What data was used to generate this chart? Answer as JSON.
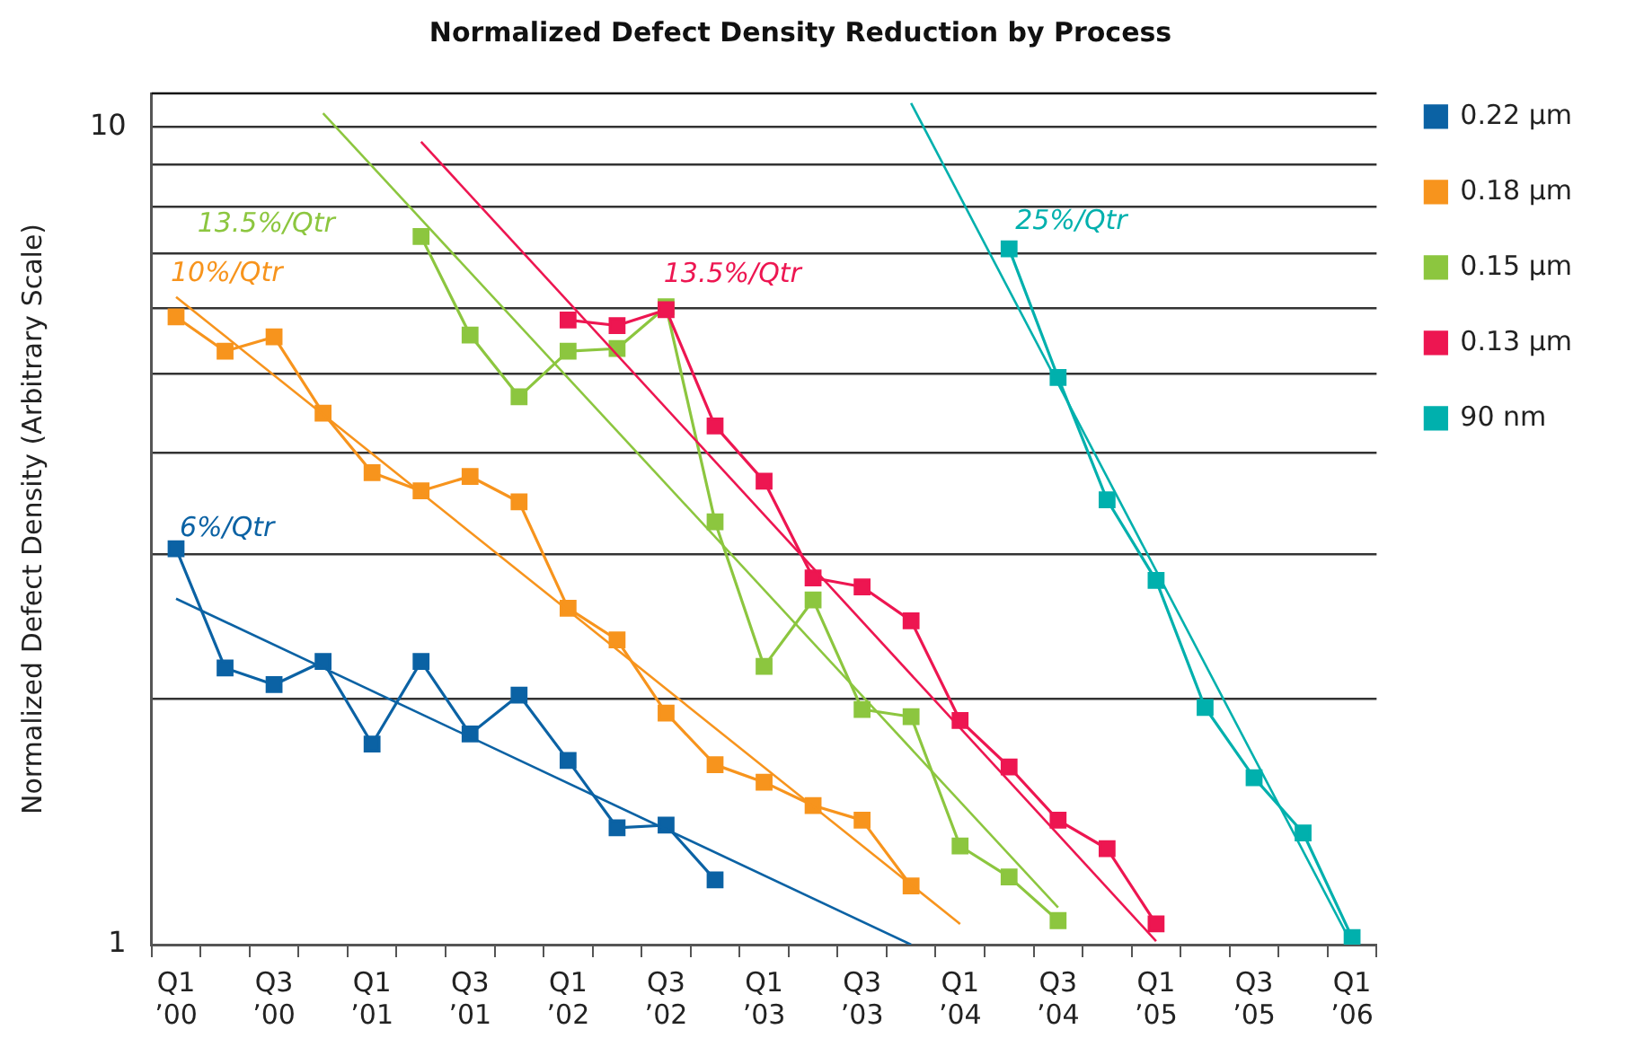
{
  "chart_data": {
    "type": "line",
    "title": "Normalized Defect Density Reduction by Process",
    "ylabel": "Normalized Defect Density (Arbitrary Scale)",
    "log": true,
    "grid": "y",
    "legend": "top right",
    "marker": "square",
    "line_style": "solid",
    "categories": [
      "Q1 ’00",
      null,
      "Q3 ’00",
      null,
      "Q1 ’01",
      null,
      "Q3 ’01",
      null,
      "Q1 ’02",
      null,
      "Q3 ’02",
      null,
      "Q1 ’03",
      null,
      "Q3 ’03",
      null,
      "Q1 ’04",
      null,
      "Q3 ’04",
      null,
      "Q1 ’05",
      null,
      "Q3 ’05",
      null,
      "Q1 ’06"
    ],
    "ylim": [
      1,
      11
    ],
    "yticks": [
      1,
      {
        "value": 2,
        "label": null
      },
      {
        "value": 3,
        "label": null
      },
      {
        "value": 4,
        "label": null
      },
      {
        "value": 5,
        "label": null
      },
      {
        "value": 6,
        "label": null
      },
      {
        "value": 7,
        "label": null
      },
      {
        "value": 8,
        "label": null
      },
      {
        "value": 9,
        "label": null
      },
      10
    ],
    "series": [
      {
        "name": "0.22 µm",
        "color": "#0b62a4",
        "values": [
          3.05,
          2.18,
          2.08,
          2.22,
          1.76,
          2.22,
          1.81,
          2.02,
          1.68,
          1.39,
          1.4,
          1.2,
          null,
          null,
          null,
          null,
          null,
          null,
          null,
          null,
          null,
          null,
          null,
          null,
          null
        ]
      },
      {
        "name": "0.18 µm",
        "color": "#f7941d",
        "values": [
          5.86,
          5.32,
          5.54,
          4.47,
          3.78,
          3.59,
          3.74,
          3.48,
          2.58,
          2.36,
          1.92,
          1.66,
          1.58,
          1.48,
          1.42,
          1.18,
          null,
          null,
          null,
          null,
          null,
          null,
          null,
          null,
          null
        ]
      },
      {
        "name": "0.15 µm",
        "color": "#8cc63f",
        "values": [
          null,
          null,
          null,
          null,
          null,
          7.35,
          5.57,
          4.68,
          5.32,
          5.36,
          6.03,
          3.29,
          2.19,
          2.64,
          1.94,
          1.9,
          1.32,
          1.21,
          1.07,
          null,
          null,
          null,
          null,
          null,
          null
        ]
      },
      {
        "name": "0.13 µm",
        "color": "#ed1651",
        "values": [
          null,
          null,
          null,
          null,
          null,
          null,
          null,
          null,
          5.81,
          5.72,
          5.98,
          4.31,
          3.69,
          2.81,
          2.74,
          2.49,
          1.88,
          1.65,
          1.42,
          1.31,
          1.06,
          null,
          null,
          null,
          null
        ]
      },
      {
        "name": "90 nm",
        "color": "#00b0ad",
        "values": [
          null,
          null,
          null,
          null,
          null,
          null,
          null,
          null,
          null,
          null,
          null,
          null,
          null,
          null,
          null,
          null,
          null,
          7.1,
          4.94,
          3.5,
          2.79,
          1.95,
          1.6,
          1.37,
          1.02
        ]
      },
      {
        "color": "#0b62a4",
        "marker": "none",
        "values": [
          2.65,
          null,
          null,
          null,
          null,
          null,
          null,
          null,
          null,
          null,
          null,
          null,
          null,
          null,
          null,
          1.0,
          null,
          null,
          null,
          null,
          null,
          null,
          null,
          null,
          null
        ]
      },
      {
        "color": "#f7941d",
        "marker": "none",
        "values": [
          6.2,
          null,
          null,
          null,
          null,
          null,
          null,
          null,
          null,
          null,
          null,
          null,
          null,
          null,
          null,
          null,
          1.06,
          null,
          null,
          null,
          null,
          null,
          null,
          null,
          null
        ]
      },
      {
        "color": "#8cc63f",
        "marker": "none",
        "values": [
          null,
          null,
          null,
          10.4,
          null,
          null,
          null,
          null,
          null,
          null,
          null,
          null,
          null,
          null,
          null,
          null,
          null,
          null,
          1.11,
          null,
          null,
          null,
          null,
          null,
          null
        ]
      },
      {
        "color": "#ed1651",
        "marker": "none",
        "values": [
          null,
          null,
          null,
          null,
          null,
          9.6,
          null,
          null,
          null,
          null,
          null,
          null,
          null,
          null,
          null,
          null,
          null,
          null,
          null,
          null,
          1.01,
          null,
          null,
          null,
          null
        ]
      },
      {
        "color": "#00b0ad",
        "marker": "none",
        "values": [
          null,
          null,
          null,
          null,
          null,
          null,
          null,
          null,
          null,
          null,
          null,
          null,
          null,
          null,
          null,
          10.7,
          null,
          null,
          null,
          null,
          null,
          null,
          null,
          null,
          1.0
        ]
      }
    ],
    "annotations": [
      "6%/Qtr",
      "10%/Qtr",
      "13.5%/Qtr",
      "13.5%/Qtr",
      "25%/Qtr"
    ]
  }
}
